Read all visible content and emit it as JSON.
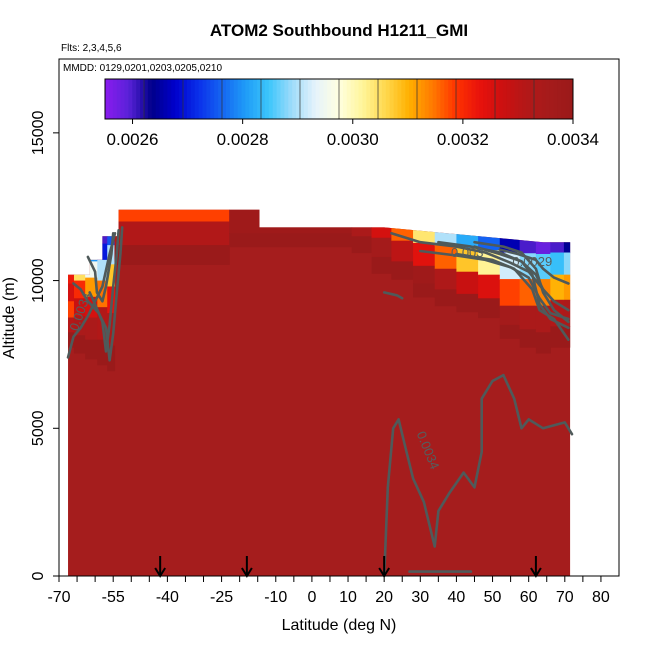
{
  "chart_data": {
    "type": "heatmap",
    "title": "ATOM2 Southbound H1211_GMI",
    "annotations": [
      "Flts: 2,3,4,5,6",
      "MMDD: 0129,0201,0203,0205,0210"
    ],
    "xlabel": "Latitude (deg N)",
    "ylabel": "Altitude (m)",
    "xlim": [
      -70,
      85
    ],
    "ylim": [
      0,
      17500
    ],
    "x_ticks": [
      -70,
      -65,
      -60,
      -55,
      -50,
      -45,
      -40,
      -35,
      -30,
      -25,
      -20,
      -15,
      -10,
      -5,
      0,
      5,
      10,
      15,
      20,
      25,
      30,
      35,
      40,
      45,
      50,
      55,
      60,
      65,
      70,
      75,
      80
    ],
    "x_tick_labels": [
      "-70",
      "",
      "",
      "-55",
      "",
      "",
      "-40",
      "",
      "",
      "-25",
      "",
      "",
      "-10",
      "",
      "0",
      "",
      "10",
      "",
      "20",
      "",
      "30",
      "",
      "40",
      "",
      "50",
      "",
      "60",
      "",
      "70",
      "",
      "80"
    ],
    "y_ticks": [
      0,
      5000,
      10000,
      15000
    ],
    "y_tick_labels": [
      "0",
      "5000",
      "10000",
      "15000"
    ],
    "colorbar": {
      "min": 0.00255,
      "max": 0.0034,
      "tick_values": [
        0.0026,
        0.0028,
        0.003,
        0.0032,
        0.0034
      ],
      "tick_labels": [
        "0.0026",
        "0.0028",
        "0.0030",
        "0.0032",
        "0.0034"
      ],
      "colors": [
        "#8a1cef",
        "#5a22d8",
        "#00008b",
        "#0000cd",
        "#0a30ea",
        "#1565f2",
        "#1f9cf7",
        "#3cc6fb",
        "#9fdcfa",
        "#e6f3fb",
        "#ffffe0",
        "#fff59a",
        "#ffd84d",
        "#ffb000",
        "#ff7a00",
        "#ff3300",
        "#e8120c",
        "#cc1010",
        "#b31818",
        "#a51b1b",
        "#9a1a1a"
      ]
    },
    "background_value": 0.0034,
    "background_color": "#a51d1d",
    "domain_lat": [
      -67.5,
      71.5
    ],
    "domain_top_alt": [
      [
        -67.5,
        10200
      ],
      [
        -61.5,
        10200
      ],
      [
        -61.5,
        10700
      ],
      [
        -58,
        10700
      ],
      [
        -58,
        11500
      ],
      [
        -53.5,
        11500
      ],
      [
        -53.5,
        12400
      ],
      [
        -14.5,
        12400
      ],
      [
        -14.5,
        11800
      ],
      [
        20,
        11800
      ],
      [
        64,
        11300
      ],
      [
        71.5,
        11300
      ]
    ],
    "upper_gradient_columns": [
      {
        "lat": -67.2,
        "values": [
          [
            10200,
            0.00322
          ],
          [
            9600,
            0.00326
          ],
          [
            9000,
            0.00318
          ],
          [
            8500,
            0.00331
          ],
          [
            8000,
            0.0034
          ]
        ]
      },
      {
        "lat": -64.5,
        "values": [
          [
            10700,
            0.0029
          ],
          [
            10300,
            0.00305
          ],
          [
            9700,
            0.0032
          ],
          [
            9100,
            0.00328
          ],
          [
            8500,
            0.00334
          ],
          [
            7800,
            0.0034
          ]
        ]
      },
      {
        "lat": -61,
        "values": [
          [
            10900,
            0.0028
          ],
          [
            10400,
            0.00295
          ],
          [
            9800,
            0.00312
          ],
          [
            9100,
            0.00326
          ],
          [
            8400,
            0.00334
          ],
          [
            7600,
            0.0034
          ]
        ]
      },
      {
        "lat": -57.8,
        "values": [
          [
            11500,
            0.0026
          ],
          [
            11000,
            0.0027
          ],
          [
            10400,
            0.0029
          ],
          [
            9600,
            0.00315
          ],
          [
            8600,
            0.00332
          ],
          [
            7400,
            0.0034
          ]
        ]
      },
      {
        "lat": -55.5,
        "values": [
          [
            11500,
            0.00275
          ],
          [
            10900,
            0.0029
          ],
          [
            10200,
            0.00308
          ],
          [
            9400,
            0.00323
          ],
          [
            8400,
            0.00334
          ],
          [
            7200,
            0.0034
          ]
        ]
      },
      {
        "lat": -53.8,
        "values": [
          [
            12400,
            0.00318
          ],
          [
            11600,
            0.00332
          ],
          [
            10800,
            0.0034
          ]
        ]
      },
      {
        "lat": 8,
        "values": [
          [
            11800,
            0.00338
          ],
          [
            11400,
            0.0034
          ]
        ]
      },
      {
        "lat": 14,
        "values": [
          [
            11800,
            0.00334
          ],
          [
            11200,
            0.0034
          ]
        ]
      },
      {
        "lat": 19,
        "values": [
          [
            11800,
            0.00326
          ],
          [
            11100,
            0.00336
          ],
          [
            10500,
            0.0034
          ]
        ]
      },
      {
        "lat": 25,
        "values": [
          [
            11700,
            0.00316
          ],
          [
            11000,
            0.0033
          ],
          [
            10300,
            0.0034
          ]
        ]
      },
      {
        "lat": 31,
        "values": [
          [
            11650,
            0.00304
          ],
          [
            10900,
            0.00324
          ],
          [
            10100,
            0.00338
          ],
          [
            9700,
            0.0034
          ]
        ]
      },
      {
        "lat": 37,
        "values": [
          [
            11600,
            0.0029
          ],
          [
            10800,
            0.00316
          ],
          [
            10000,
            0.00333
          ],
          [
            9400,
            0.0034
          ]
        ]
      },
      {
        "lat": 43,
        "values": [
          [
            11500,
            0.00282
          ],
          [
            10700,
            0.00308
          ],
          [
            9900,
            0.00328
          ],
          [
            9200,
            0.0034
          ]
        ]
      },
      {
        "lat": 49,
        "values": [
          [
            11450,
            0.00276
          ],
          [
            10600,
            0.00302
          ],
          [
            9800,
            0.00325
          ],
          [
            9000,
            0.0034
          ]
        ]
      },
      {
        "lat": 55,
        "values": [
          [
            11400,
            0.00266
          ],
          [
            10500,
            0.00292
          ],
          [
            9600,
            0.00318
          ],
          [
            8700,
            0.00336
          ],
          [
            8300,
            0.0034
          ]
        ]
      },
      {
        "lat": 60,
        "values": [
          [
            11350,
            0.0026
          ],
          [
            10500,
            0.00288
          ],
          [
            9600,
            0.00316
          ],
          [
            8700,
            0.00334
          ],
          [
            8000,
            0.0034
          ]
        ]
      },
      {
        "lat": 64,
        "values": [
          [
            11300,
            0.00258
          ],
          [
            10500,
            0.00286
          ],
          [
            9600,
            0.00314
          ],
          [
            8700,
            0.00334
          ],
          [
            7800,
            0.0034
          ]
        ]
      },
      {
        "lat": 68,
        "values": [
          [
            11300,
            0.0026
          ],
          [
            10600,
            0.00284
          ],
          [
            9800,
            0.0031
          ],
          [
            8900,
            0.00332
          ],
          [
            8000,
            0.0034
          ]
        ]
      },
      {
        "lat": 71.5,
        "values": [
          [
            11300,
            0.00264
          ],
          [
            10600,
            0.00288
          ],
          [
            9800,
            0.00312
          ],
          [
            8900,
            0.00334
          ],
          [
            8000,
            0.0034
          ]
        ]
      }
    ],
    "contour_labels": [
      {
        "text": "0.0034",
        "lat": -63,
        "alt": 8900
      },
      {
        "text": "0.0034",
        "lat": 31,
        "alt": 4200
      },
      {
        "text": "0.003",
        "lat": 43,
        "alt": 10800
      },
      {
        "text": "0.0029",
        "lat": 61,
        "alt": 10500
      }
    ],
    "contour_lines": [
      [
        [
          -62,
          10800
        ],
        [
          -60,
          10300
        ],
        [
          -59.5,
          9600
        ],
        [
          -58,
          9300
        ],
        [
          -57,
          9800
        ],
        [
          -55.5,
          10900
        ],
        [
          -55,
          11600
        ]
      ],
      [
        [
          -61.5,
          9600
        ],
        [
          -60,
          9200
        ],
        [
          -58,
          8600
        ],
        [
          -57,
          7600
        ],
        [
          -56,
          8500
        ],
        [
          -55,
          9800
        ],
        [
          -54,
          10900
        ],
        [
          -53.5,
          11700
        ]
      ],
      [
        [
          -66,
          9900
        ],
        [
          -64,
          9700
        ],
        [
          -62,
          9300
        ],
        [
          -59,
          8900
        ],
        [
          -57,
          8400
        ],
        [
          -56,
          7300
        ],
        [
          -55,
          8200
        ],
        [
          -54,
          9600
        ],
        [
          -53,
          10900
        ],
        [
          -52.5,
          11800
        ]
      ],
      [
        [
          -67.5,
          7400
        ],
        [
          -66,
          8100
        ],
        [
          -64,
          8400
        ],
        [
          -62,
          8800
        ],
        [
          -60,
          9300
        ],
        [
          -58,
          9800
        ],
        [
          -56,
          10900
        ],
        [
          -54.5,
          11600
        ]
      ],
      [
        [
          22,
          11600
        ],
        [
          30,
          11300
        ],
        [
          40,
          11150
        ],
        [
          48,
          10950
        ],
        [
          55,
          10600
        ],
        [
          60,
          10300
        ],
        [
          64,
          9700
        ],
        [
          67,
          9300
        ],
        [
          71,
          9000
        ]
      ],
      [
        [
          30,
          11000
        ],
        [
          40,
          10850
        ],
        [
          48,
          10700
        ],
        [
          55,
          10450
        ],
        [
          60,
          10100
        ],
        [
          63,
          9400
        ],
        [
          66,
          8900
        ],
        [
          71,
          8700
        ]
      ],
      [
        [
          35,
          11300
        ],
        [
          44,
          11150
        ],
        [
          52,
          10950
        ],
        [
          58,
          10650
        ],
        [
          61,
          10200
        ],
        [
          63,
          9200
        ],
        [
          66,
          8700
        ],
        [
          71,
          8400
        ]
      ],
      [
        [
          45,
          11300
        ],
        [
          53,
          11150
        ],
        [
          58,
          10950
        ],
        [
          62,
          10400
        ],
        [
          64,
          9600
        ],
        [
          67,
          9000
        ],
        [
          71,
          8600
        ]
      ],
      [
        [
          40,
          10900
        ],
        [
          50,
          10700
        ],
        [
          56,
          10400
        ],
        [
          61,
          9700
        ],
        [
          63,
          9000
        ],
        [
          67,
          8700
        ],
        [
          71,
          8000
        ]
      ],
      [
        [
          52,
          11050
        ],
        [
          57,
          10900
        ],
        [
          62,
          10700
        ],
        [
          64,
          10400
        ],
        [
          67,
          10100
        ],
        [
          71,
          9900
        ]
      ],
      [
        [
          45,
          11150
        ],
        [
          52,
          10900
        ],
        [
          58,
          10650
        ],
        [
          62,
          10200
        ],
        [
          64,
          9700
        ]
      ],
      [
        [
          20,
          9600
        ],
        [
          23.5,
          9500
        ],
        [
          25,
          9400
        ]
      ],
      [
        [
          27,
          150
        ],
        [
          44,
          150
        ]
      ],
      [
        [
          20,
          0
        ],
        [
          21,
          3000
        ],
        [
          22.5,
          5000
        ],
        [
          24,
          5300
        ],
        [
          26,
          4300
        ],
        [
          28,
          3300
        ],
        [
          31,
          2500
        ],
        [
          34,
          1000
        ],
        [
          35,
          2200
        ],
        [
          38,
          2800
        ],
        [
          42,
          3500
        ],
        [
          45,
          3000
        ],
        [
          47,
          4200
        ],
        [
          47,
          6000
        ],
        [
          50,
          6600
        ],
        [
          53,
          6800
        ],
        [
          56,
          6000
        ],
        [
          58,
          5000
        ],
        [
          60,
          5300
        ],
        [
          64,
          5000
        ],
        [
          70,
          5200
        ],
        [
          72,
          4800
        ]
      ]
    ],
    "profile_arrows_lat": [
      -42,
      -18,
      20,
      62
    ]
  }
}
